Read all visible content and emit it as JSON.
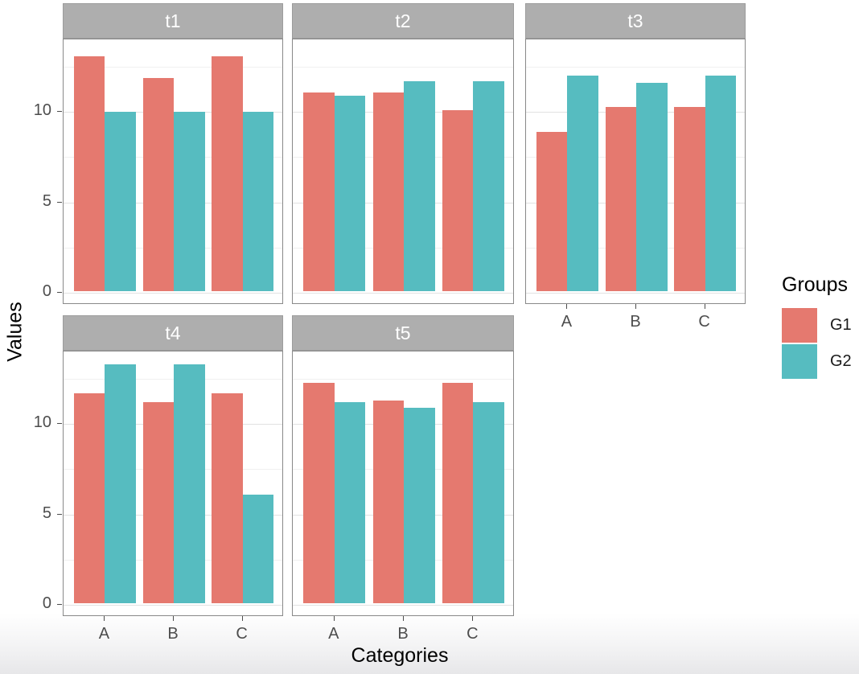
{
  "chart_data": {
    "type": "bar",
    "title": "",
    "xlabel": "Categories",
    "ylabel": "Values",
    "categories": [
      "A",
      "B",
      "C"
    ],
    "y_tick_labels": [
      "0",
      "5",
      "10"
    ],
    "y_major_ticks": [
      0,
      5,
      10
    ],
    "y_minor_ticks": [
      2.5,
      7.5,
      12.5
    ],
    "ylim": [
      -0.7,
      14.0
    ],
    "grid": true,
    "facet_strip_color": "#aeaeae",
    "series_names": [
      "G1",
      "G2"
    ],
    "series_colors": {
      "G1": "#E5796F",
      "G2": "#56BCC0"
    },
    "facets": [
      {
        "title": "t1",
        "show_x_labels": false,
        "series": [
          {
            "name": "G1",
            "values": [
              13.0,
              11.8,
              13.0
            ]
          },
          {
            "name": "G2",
            "values": [
              9.9,
              9.9,
              9.9
            ]
          }
        ]
      },
      {
        "title": "t2",
        "show_x_labels": false,
        "series": [
          {
            "name": "G1",
            "values": [
              11.0,
              11.0,
              10.0
            ]
          },
          {
            "name": "G2",
            "values": [
              10.8,
              11.6,
              11.6
            ]
          }
        ]
      },
      {
        "title": "t3",
        "show_x_labels": true,
        "series": [
          {
            "name": "G1",
            "values": [
              8.8,
              10.2,
              10.2
            ]
          },
          {
            "name": "G2",
            "values": [
              11.9,
              11.5,
              11.9
            ]
          }
        ]
      },
      {
        "title": "t4",
        "show_x_labels": true,
        "series": [
          {
            "name": "G1",
            "values": [
              11.6,
              11.1,
              11.6
            ]
          },
          {
            "name": "G2",
            "values": [
              13.2,
              13.2,
              6.0
            ]
          }
        ]
      },
      {
        "title": "t5",
        "show_x_labels": true,
        "series": [
          {
            "name": "G1",
            "values": [
              12.2,
              11.2,
              12.2
            ]
          },
          {
            "name": "G2",
            "values": [
              11.1,
              10.8,
              11.1
            ]
          }
        ]
      }
    ],
    "legend": {
      "title": "Groups",
      "position": "right",
      "entries": [
        {
          "label": "G1",
          "color": "#E5796F"
        },
        {
          "label": "G2",
          "color": "#56BCC0"
        }
      ]
    }
  }
}
